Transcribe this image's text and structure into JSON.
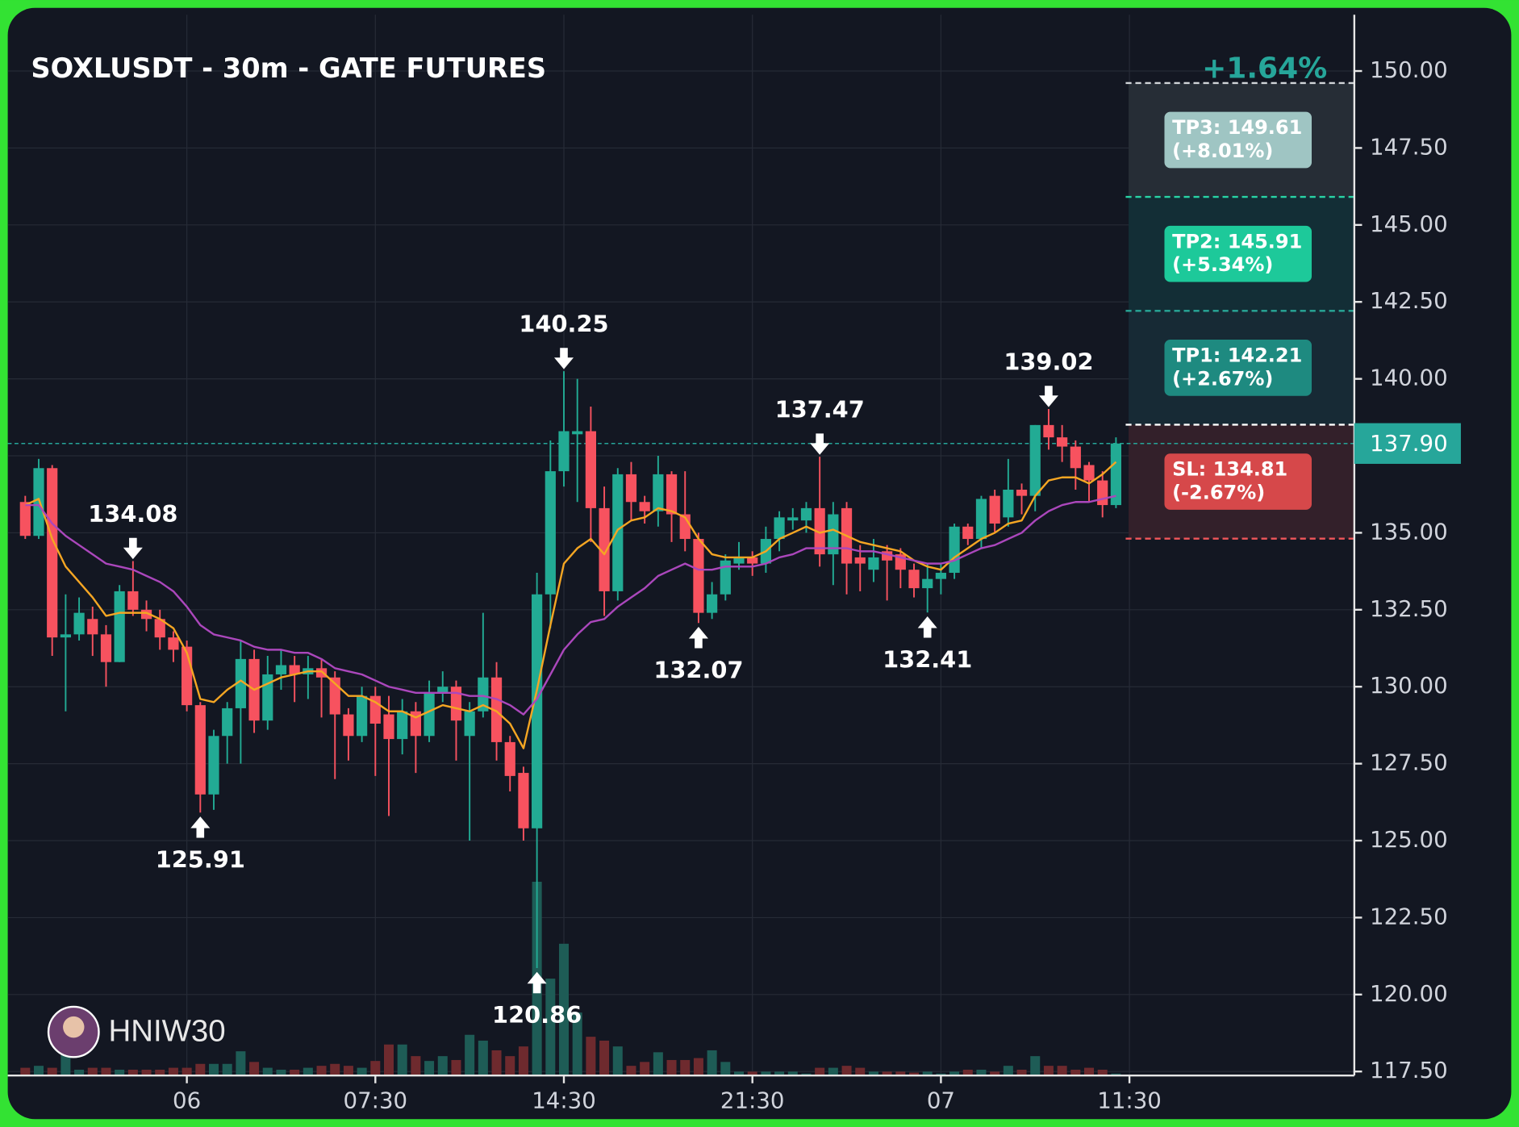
{
  "chart_data": {
    "type": "candlestick",
    "title": "SOXLUSDT - 30m - GATE FUTURES",
    "change_label": "+1.64%",
    "watermark": "HNIW30",
    "up_color": "#22ab94",
    "down_color": "#f7525f",
    "volume_up_color": "#1e5c56",
    "volume_down_color": "#6e2a2e",
    "grid": true,
    "xlim": [
      -1.3,
      98.7
    ],
    "xticks": [
      {
        "value": 12,
        "label": "06"
      },
      {
        "value": 26,
        "label": "07:30"
      },
      {
        "value": 40,
        "label": "14:30"
      },
      {
        "value": 54,
        "label": "21:30"
      },
      {
        "value": 68,
        "label": "07"
      },
      {
        "value": 82,
        "label": "11:30"
      }
    ],
    "ylim": [
      117.37,
      151.83
    ],
    "yticks": [
      {
        "value": 117.5,
        "label": "117.50"
      },
      {
        "value": 120,
        "label": "120.00"
      },
      {
        "value": 122.5,
        "label": "122.50"
      },
      {
        "value": 125,
        "label": "125.00"
      },
      {
        "value": 127.5,
        "label": "127.50"
      },
      {
        "value": 130,
        "label": "130.00"
      },
      {
        "value": 132.5,
        "label": "132.50"
      },
      {
        "value": 135,
        "label": "135.00"
      },
      {
        "value": 137.5,
        "label": "137.50"
      },
      {
        "value": 140,
        "label": "140.00"
      },
      {
        "value": 142.5,
        "label": "142.50"
      },
      {
        "value": 145,
        "label": "145.00"
      },
      {
        "value": 147.5,
        "label": "147.50"
      },
      {
        "value": 150,
        "label": "150.00"
      }
    ],
    "open": [
      136.0,
      134.9,
      137.1,
      131.6,
      131.7,
      132.2,
      131.7,
      130.8,
      133.1,
      132.5,
      132.2,
      131.6,
      131.3,
      129.4,
      126.5,
      128.4,
      129.3,
      130.9,
      128.9,
      130.4,
      130.7,
      130.4,
      130.6,
      130.3,
      129.1,
      128.4,
      129.7,
      129.1,
      128.3,
      129.2,
      128.4,
      129.8,
      130.0,
      128.4,
      129.2,
      130.3,
      128.2,
      127.2,
      125.4,
      133.0,
      137.0,
      138.2,
      138.3,
      135.8,
      133.1,
      136.9,
      136.0,
      135.7,
      136.9,
      135.6,
      134.8,
      132.4,
      133.0,
      134.0,
      134.2,
      134.0,
      134.8,
      135.4,
      135.4,
      135.8,
      134.3,
      135.8,
      134.2,
      133.8,
      134.4,
      134.3,
      133.8,
      133.2,
      133.5,
      133.7,
      135.2,
      134.8,
      136.2,
      135.5,
      136.4,
      136.2,
      138.5,
      138.1,
      137.8,
      137.2,
      136.7,
      135.9
    ],
    "high": [
      136.2,
      137.4,
      137.2,
      133.0,
      132.9,
      132.6,
      132.0,
      133.3,
      134.08,
      132.8,
      132.5,
      131.8,
      131.5,
      129.5,
      128.6,
      129.5,
      131.5,
      131.2,
      131.0,
      131.2,
      131.0,
      131.0,
      130.9,
      130.5,
      129.3,
      130.0,
      130.0,
      129.7,
      129.6,
      129.5,
      130.2,
      130.5,
      130.2,
      129.5,
      132.4,
      130.8,
      128.4,
      127.4,
      133.7,
      138.0,
      140.25,
      140.0,
      139.1,
      136.5,
      137.1,
      137.3,
      136.2,
      137.5,
      137.0,
      137.0,
      135.0,
      133.4,
      134.3,
      134.7,
      134.4,
      135.2,
      135.7,
      135.8,
      136.0,
      137.47,
      136.0,
      136.0,
      134.6,
      134.8,
      134.6,
      134.5,
      134.0,
      134.0,
      134.0,
      135.3,
      135.3,
      136.2,
      136.4,
      137.4,
      136.6,
      138.5,
      139.02,
      138.5,
      138.0,
      137.3,
      137.0,
      138.1
    ],
    "low": [
      134.8,
      134.8,
      131.0,
      129.2,
      131.5,
      131.0,
      130.0,
      130.8,
      132.3,
      131.8,
      131.2,
      130.8,
      129.2,
      125.91,
      126.0,
      127.5,
      127.5,
      128.5,
      128.6,
      129.9,
      129.5,
      129.6,
      129.0,
      127.0,
      127.6,
      128.2,
      127.1,
      125.8,
      127.8,
      127.2,
      128.2,
      129.5,
      127.6,
      125.0,
      129.0,
      127.6,
      126.6,
      125.0,
      120.86,
      131.9,
      136.5,
      136.0,
      134.7,
      132.3,
      132.8,
      135.4,
      135.3,
      135.2,
      134.7,
      134.4,
      132.07,
      132.2,
      132.8,
      133.8,
      133.6,
      133.7,
      134.4,
      135.1,
      135.0,
      133.9,
      133.3,
      133.0,
      133.1,
      133.4,
      132.8,
      133.2,
      132.9,
      132.41,
      133.0,
      133.5,
      134.6,
      134.5,
      135.0,
      135.2,
      135.6,
      135.7,
      137.7,
      137.3,
      136.4,
      136.0,
      135.5,
      135.8
    ],
    "close": [
      134.9,
      137.1,
      131.6,
      131.7,
      132.4,
      131.7,
      130.8,
      133.1,
      132.5,
      132.2,
      131.6,
      131.2,
      129.4,
      126.5,
      128.4,
      129.3,
      130.9,
      128.9,
      130.4,
      130.7,
      130.4,
      130.6,
      130.3,
      129.1,
      128.4,
      129.7,
      128.8,
      128.3,
      129.2,
      128.4,
      129.8,
      130.0,
      128.9,
      129.2,
      130.3,
      128.2,
      127.1,
      125.4,
      133.0,
      137.0,
      138.3,
      138.3,
      135.8,
      133.1,
      136.9,
      136.0,
      135.7,
      136.9,
      135.6,
      134.8,
      132.4,
      133.0,
      134.1,
      134.2,
      134.0,
      134.8,
      135.5,
      135.5,
      135.8,
      134.3,
      135.6,
      134.0,
      134.0,
      134.2,
      134.1,
      133.8,
      133.2,
      133.5,
      133.7,
      135.2,
      134.8,
      136.1,
      135.3,
      136.4,
      136.2,
      138.5,
      138.1,
      137.8,
      137.1,
      136.7,
      135.9,
      137.9
    ],
    "volume": [
      8,
      10,
      8,
      25,
      6,
      8,
      8,
      6,
      6,
      6,
      6,
      8,
      8,
      12,
      12,
      12,
      25,
      14,
      8,
      6,
      6,
      8,
      10,
      12,
      10,
      8,
      15,
      32,
      32,
      20,
      15,
      20,
      16,
      42,
      36,
      26,
      20,
      30,
      200,
      100,
      136,
      65,
      40,
      36,
      30,
      10,
      14,
      24,
      16,
      16,
      18,
      26,
      14,
      4,
      4,
      4,
      4,
      4,
      2,
      8,
      8,
      10,
      8,
      4,
      4,
      4,
      3,
      4,
      2,
      4,
      6,
      6,
      4,
      10,
      6,
      20,
      10,
      10,
      6,
      8,
      6,
      2
    ],
    "vlim": [
      0,
      400
    ],
    "lines": [
      {
        "color": "#f5a623",
        "values": [
          135.9,
          136.1,
          134.8,
          133.9,
          133.4,
          132.9,
          132.3,
          132.4,
          132.4,
          132.4,
          132.2,
          131.9,
          131.1,
          129.6,
          129.5,
          129.9,
          130.2,
          129.9,
          130.1,
          130.3,
          130.4,
          130.5,
          130.5,
          130.1,
          129.7,
          129.7,
          129.5,
          129.2,
          129.2,
          129.0,
          129.2,
          129.4,
          129.3,
          129.2,
          129.4,
          129.2,
          128.8,
          128.0,
          129.9,
          132.0,
          134.0,
          134.5,
          134.8,
          134.3,
          135.1,
          135.4,
          135.5,
          135.8,
          135.7,
          135.5,
          134.8,
          134.3,
          134.2,
          134.2,
          134.2,
          134.4,
          134.8,
          135.0,
          135.2,
          135.0,
          135.1,
          134.9,
          134.7,
          134.6,
          134.5,
          134.4,
          134.1,
          133.9,
          133.8,
          134.2,
          134.5,
          134.8,
          135.0,
          135.3,
          135.4,
          136.2,
          136.7,
          136.8,
          136.8,
          136.6,
          136.9,
          137.3
        ]
      },
      {
        "color": "#ab47bc",
        "values": [
          135.9,
          135.9,
          135.3,
          134.9,
          134.6,
          134.3,
          134.0,
          133.9,
          133.8,
          133.6,
          133.4,
          133.1,
          132.6,
          132.0,
          131.7,
          131.6,
          131.5,
          131.3,
          131.2,
          131.2,
          131.1,
          131.1,
          130.9,
          130.6,
          130.5,
          130.4,
          130.2,
          130.0,
          129.9,
          129.8,
          129.8,
          129.8,
          129.8,
          129.7,
          129.7,
          129.6,
          129.4,
          129.1,
          129.6,
          130.4,
          131.2,
          131.7,
          132.1,
          132.2,
          132.6,
          132.9,
          133.2,
          133.6,
          133.8,
          134.0,
          133.8,
          133.8,
          133.9,
          133.9,
          133.9,
          134.0,
          134.2,
          134.3,
          134.5,
          134.5,
          134.5,
          134.5,
          134.4,
          134.4,
          134.3,
          134.2,
          134.1,
          134.0,
          134.0,
          134.1,
          134.3,
          134.5,
          134.6,
          134.8,
          135.0,
          135.4,
          135.7,
          135.9,
          136.0,
          136.0,
          136.1,
          136.2
        ]
      }
    ],
    "annotations": [
      {
        "x": 8,
        "value": 134.08,
        "direction": "down"
      },
      {
        "x": 13,
        "value": 125.91,
        "direction": "up"
      },
      {
        "x": 38,
        "value": 120.86,
        "direction": "up"
      },
      {
        "x": 40,
        "value": 140.25,
        "direction": "down"
      },
      {
        "x": 50,
        "value": 132.07,
        "direction": "up"
      },
      {
        "x": 59,
        "value": 137.47,
        "direction": "down"
      },
      {
        "x": 67,
        "value": 132.41,
        "direction": "up"
      },
      {
        "x": 76,
        "value": 139.02,
        "direction": "down"
      }
    ],
    "entry": 138.51,
    "entry_color": "#ffffff",
    "levels": [
      {
        "label": "TP3: 149.61",
        "change": "(+8.01%)",
        "value": 149.61,
        "color": "#9fc5c3",
        "line_color": "#d0d4d8",
        "zone_color": "#262d36"
      },
      {
        "label": "TP2: 145.91",
        "change": "(+5.34%)",
        "value": 145.91,
        "color": "#1dc99a",
        "line_color": "#28d3a5",
        "zone_color": "#132e36"
      },
      {
        "label": "TP1: 142.21",
        "change": "(+2.67%)",
        "value": 142.21,
        "color": "#1e8a80",
        "line_color": "#28a898",
        "zone_color": "#172a35"
      },
      {
        "label": "SL: 134.81",
        "change": "(-2.67%)",
        "value": 134.81,
        "color": "#d6484a",
        "line_color": "#f0565a",
        "zone_color": "#33202a"
      }
    ],
    "last": {
      "value": 137.9,
      "label": "137.90",
      "color": "#26a69a"
    }
  }
}
